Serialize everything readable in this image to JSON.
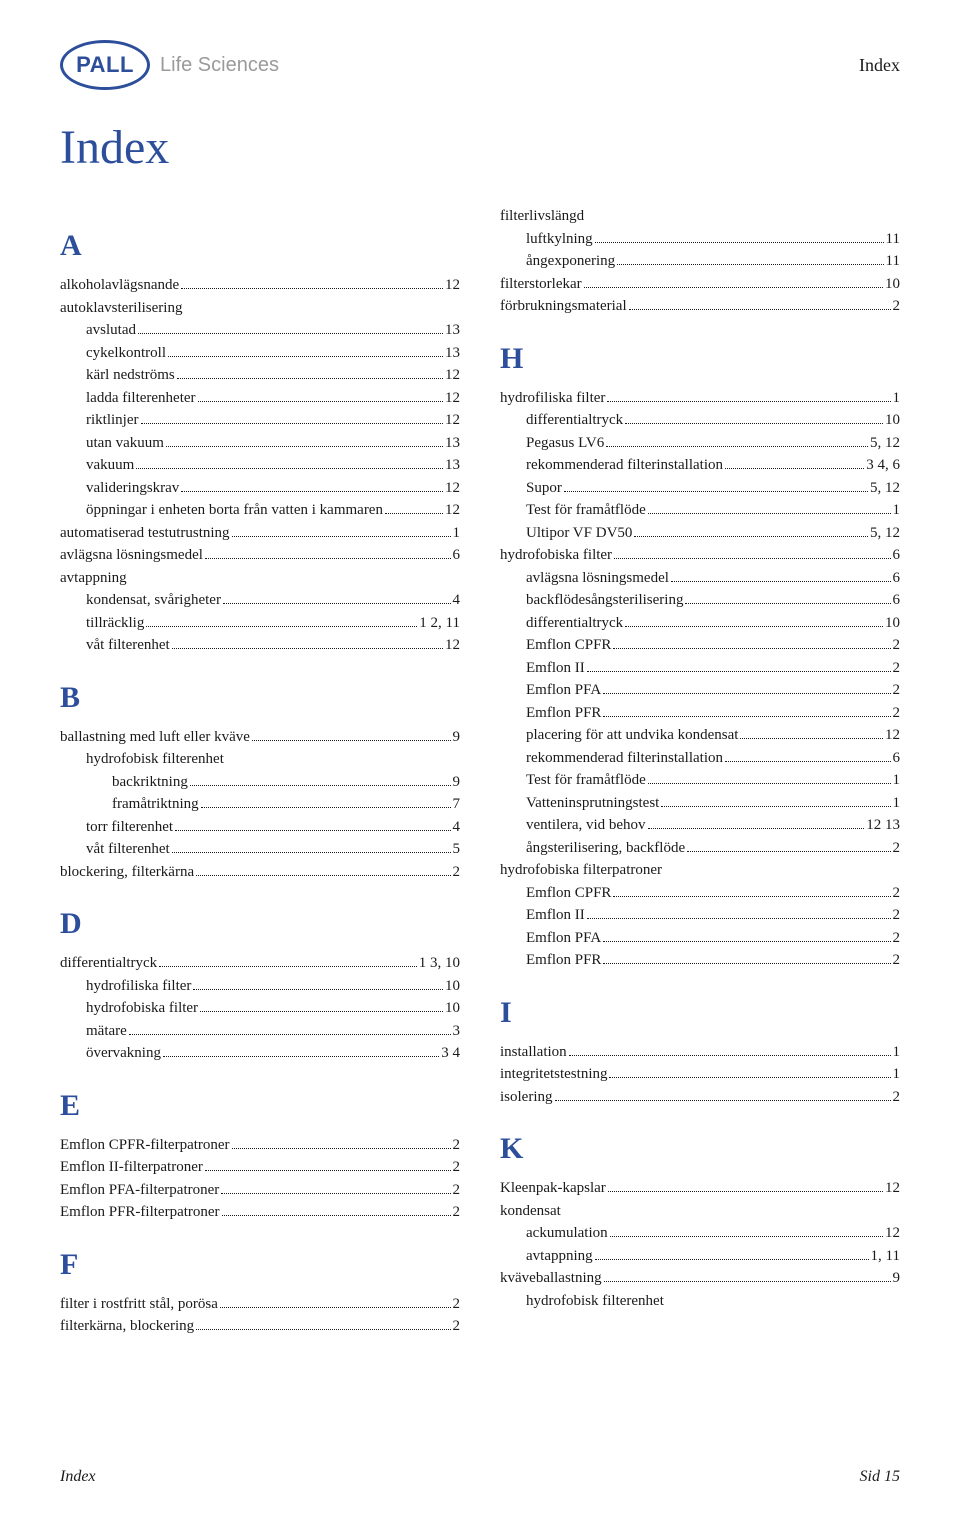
{
  "brand": {
    "logo": "PALL",
    "sub": "Life Sciences"
  },
  "header_right": "Index",
  "title": "Index",
  "footer": {
    "left": "Index",
    "right": "Sid 15"
  },
  "left": [
    {
      "type": "letter",
      "text": "A"
    },
    {
      "lv": 0,
      "label": "alkoholavlägsnande",
      "pg": "12"
    },
    {
      "lv": 0,
      "label": "autoklavsterilisering",
      "nopage": true
    },
    {
      "lv": 1,
      "label": "avslutad",
      "pg": "13"
    },
    {
      "lv": 1,
      "label": "cykelkontroll",
      "pg": "13"
    },
    {
      "lv": 1,
      "label": "kärl nedströms",
      "pg": "12"
    },
    {
      "lv": 1,
      "label": "ladda filterenheter",
      "pg": "12"
    },
    {
      "lv": 1,
      "label": "riktlinjer",
      "pg": "12"
    },
    {
      "lv": 1,
      "label": "utan vakuum",
      "pg": "13"
    },
    {
      "lv": 1,
      "label": "vakuum",
      "pg": "13"
    },
    {
      "lv": 1,
      "label": "valideringskrav",
      "pg": "12"
    },
    {
      "lv": 1,
      "label": "öppningar i enheten borta från vatten i kammaren",
      "pg": "12"
    },
    {
      "lv": 0,
      "label": "automatiserad testutrustning",
      "pg": "1"
    },
    {
      "lv": 0,
      "label": "avlägsna lösningsmedel",
      "pg": "6"
    },
    {
      "lv": 0,
      "label": "avtappning",
      "nopage": true
    },
    {
      "lv": 1,
      "label": "kondensat, svårigheter",
      "pg": "4"
    },
    {
      "lv": 1,
      "label": "tillräcklig",
      "pg": "1 2, 11"
    },
    {
      "lv": 1,
      "label": "våt filterenhet",
      "pg": "12"
    },
    {
      "type": "letter",
      "text": "B"
    },
    {
      "lv": 0,
      "label": "ballastning med luft eller kväve",
      "pg": "9"
    },
    {
      "lv": 1,
      "label": "hydrofobisk filterenhet",
      "nopage": true
    },
    {
      "lv": 2,
      "label": "backriktning",
      "pg": "9"
    },
    {
      "lv": 2,
      "label": "framåtriktning",
      "pg": "7"
    },
    {
      "lv": 1,
      "label": "torr filterenhet",
      "pg": "4"
    },
    {
      "lv": 1,
      "label": "våt filterenhet",
      "pg": "5"
    },
    {
      "lv": 0,
      "label": "blockering, filterkärna",
      "pg": "2"
    },
    {
      "type": "letter",
      "text": "D"
    },
    {
      "lv": 0,
      "label": "differentialtryck",
      "pg": "1 3, 10"
    },
    {
      "lv": 1,
      "label": "hydrofiliska filter",
      "pg": "10"
    },
    {
      "lv": 1,
      "label": "hydrofobiska filter",
      "pg": "10"
    },
    {
      "lv": 1,
      "label": "mätare",
      "pg": "3"
    },
    {
      "lv": 1,
      "label": "övervakning",
      "pg": "3 4"
    },
    {
      "type": "letter",
      "text": "E"
    },
    {
      "lv": 0,
      "label": "Emflon CPFR-filterpatroner",
      "pg": "2"
    },
    {
      "lv": 0,
      "label": "Emflon II-filterpatroner",
      "pg": "2"
    },
    {
      "lv": 0,
      "label": "Emflon PFA-filterpatroner",
      "pg": "2"
    },
    {
      "lv": 0,
      "label": "Emflon PFR-filterpatroner",
      "pg": "2"
    },
    {
      "type": "letter",
      "text": "F"
    },
    {
      "lv": 0,
      "label": "filter i rostfritt stål, porösa",
      "pg": "2"
    },
    {
      "lv": 0,
      "label": "filterkärna, blockering",
      "pg": "2"
    }
  ],
  "right": [
    {
      "lv": 0,
      "label": "filterlivslängd",
      "nopage": true
    },
    {
      "lv": 1,
      "label": "luftkylning",
      "pg": "11"
    },
    {
      "lv": 1,
      "label": "ångexponering",
      "pg": "11"
    },
    {
      "lv": 0,
      "label": "filterstorlekar",
      "pg": "10"
    },
    {
      "lv": 0,
      "label": "förbrukningsmaterial",
      "pg": "2"
    },
    {
      "type": "letter",
      "text": "H"
    },
    {
      "lv": 0,
      "label": "hydrofiliska filter",
      "pg": "1"
    },
    {
      "lv": 1,
      "label": "differentialtryck",
      "pg": "10"
    },
    {
      "lv": 1,
      "label": "Pegasus LV6",
      "pg": "5, 12"
    },
    {
      "lv": 1,
      "label": "rekommenderad filterinstallation",
      "pg": "3 4, 6"
    },
    {
      "lv": 1,
      "label": "Supor",
      "pg": "5, 12"
    },
    {
      "lv": 1,
      "label": "Test för framåtflöde",
      "pg": "1"
    },
    {
      "lv": 1,
      "label": "Ultipor VF DV50",
      "pg": "5, 12"
    },
    {
      "lv": 0,
      "label": "hydrofobiska filter",
      "pg": "6"
    },
    {
      "lv": 1,
      "label": "avlägsna lösningsmedel",
      "pg": "6"
    },
    {
      "lv": 1,
      "label": "backflödesångsterilisering",
      "pg": "6"
    },
    {
      "lv": 1,
      "label": "differentialtryck",
      "pg": "10"
    },
    {
      "lv": 1,
      "label": "Emflon CPFR",
      "pg": "2"
    },
    {
      "lv": 1,
      "label": "Emflon II",
      "pg": "2"
    },
    {
      "lv": 1,
      "label": "Emflon PFA",
      "pg": "2"
    },
    {
      "lv": 1,
      "label": "Emflon PFR",
      "pg": "2"
    },
    {
      "lv": 1,
      "label": "placering för att undvika kondensat",
      "pg": "12"
    },
    {
      "lv": 1,
      "label": "rekommenderad filterinstallation",
      "pg": "6"
    },
    {
      "lv": 1,
      "label": "Test för framåtflöde",
      "pg": "1"
    },
    {
      "lv": 1,
      "label": "Vatteninsprutningstest",
      "pg": "1"
    },
    {
      "lv": 1,
      "label": "ventilera, vid behov",
      "pg": "12 13"
    },
    {
      "lv": 1,
      "label": "ångsterilisering, backflöde",
      "pg": "2"
    },
    {
      "lv": 0,
      "label": "hydrofobiska filterpatroner",
      "nopage": true
    },
    {
      "lv": 1,
      "label": "Emflon CPFR",
      "pg": "2"
    },
    {
      "lv": 1,
      "label": "Emflon II",
      "pg": "2"
    },
    {
      "lv": 1,
      "label": "Emflon PFA",
      "pg": "2"
    },
    {
      "lv": 1,
      "label": "Emflon PFR",
      "pg": "2"
    },
    {
      "type": "letter",
      "text": "I"
    },
    {
      "lv": 0,
      "label": "installation",
      "pg": "1"
    },
    {
      "lv": 0,
      "label": "integritetstestning",
      "pg": "1"
    },
    {
      "lv": 0,
      "label": "isolering",
      "pg": "2"
    },
    {
      "type": "letter",
      "text": "K"
    },
    {
      "lv": 0,
      "label": "Kleenpak-kapslar",
      "pg": "12"
    },
    {
      "lv": 0,
      "label": "kondensat",
      "nopage": true
    },
    {
      "lv": 1,
      "label": "ackumulation",
      "pg": "12"
    },
    {
      "lv": 1,
      "label": "avtappning",
      "pg": "1, 11"
    },
    {
      "lv": 0,
      "label": "kväveballastning",
      "pg": "9"
    },
    {
      "lv": 1,
      "label": "hydrofobisk filterenhet",
      "nopage": true
    }
  ]
}
